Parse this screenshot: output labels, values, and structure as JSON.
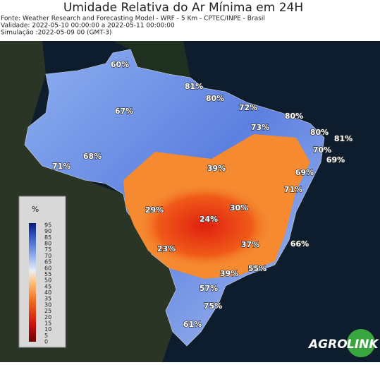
{
  "header": {
    "title": "Umidade Relativa do Ar Mínima em 24H",
    "lines": [
      "Fonte: Weather Research and Forecasting Model - WRF - 5 Km - CPTEC/INPE - Brasil",
      "Validade: 2022-05-10 00:00:00 a 2022-05-11 00:00:00",
      "Simulação :2022-05-09 00 (GMT-3)"
    ]
  },
  "map": {
    "labels": [
      "60%",
      "81%",
      "80%",
      "72%",
      "67%",
      "80%",
      "73%",
      "80%",
      "81%",
      "70%",
      "69%",
      "68%",
      "71%",
      "39%",
      "69%",
      "71%",
      "29%",
      "30%",
      "24%",
      "37%",
      "66%",
      "23%",
      "39%",
      "55%",
      "57%",
      "75%",
      "61%"
    ]
  },
  "colorbar": {
    "unit": "%",
    "ticks": [
      95,
      90,
      85,
      80,
      75,
      70,
      65,
      60,
      55,
      50,
      45,
      40,
      35,
      30,
      25,
      20,
      15,
      10,
      5,
      0
    ]
  },
  "logo": {
    "left": "AGRO",
    "right": "LINK"
  }
}
